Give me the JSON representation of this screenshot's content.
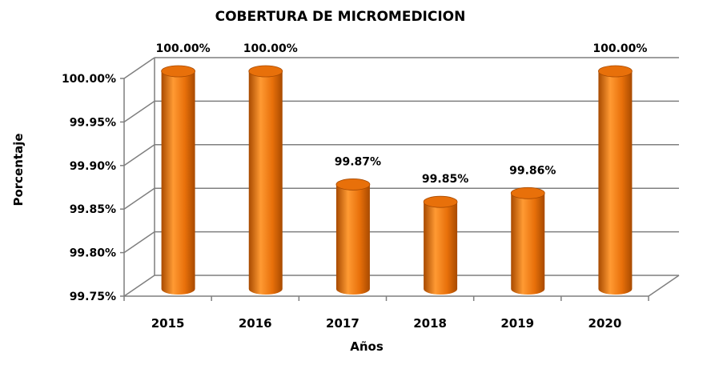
{
  "chart_data": {
    "type": "bar",
    "title": "COBERTURA DE MICROMEDICION",
    "xlabel": "Años",
    "ylabel": "Porcentaje",
    "categories": [
      "2015",
      "2016",
      "2017",
      "2018",
      "2019",
      "2020"
    ],
    "values": [
      100.0,
      100.0,
      99.87,
      99.85,
      99.86,
      100.0
    ],
    "data_labels": [
      "100.00%",
      "100.00%",
      "99.87%",
      "99.85%",
      "99.86%",
      "100.00%"
    ],
    "ylim": [
      99.75,
      100.0
    ],
    "yticks": [
      99.75,
      99.8,
      99.85,
      99.9,
      99.95,
      100.0
    ],
    "ytick_labels": [
      "99.75%",
      "99.80%",
      "99.85%",
      "99.90%",
      "99.95%",
      "100.00%"
    ],
    "grid": true,
    "bar_shape": "cylinder-3d",
    "colors": {
      "bar": "#E8700A",
      "bar_dark": "#A84A00",
      "bar_light": "#FF9A33",
      "grid": "#7f7f7f"
    }
  }
}
